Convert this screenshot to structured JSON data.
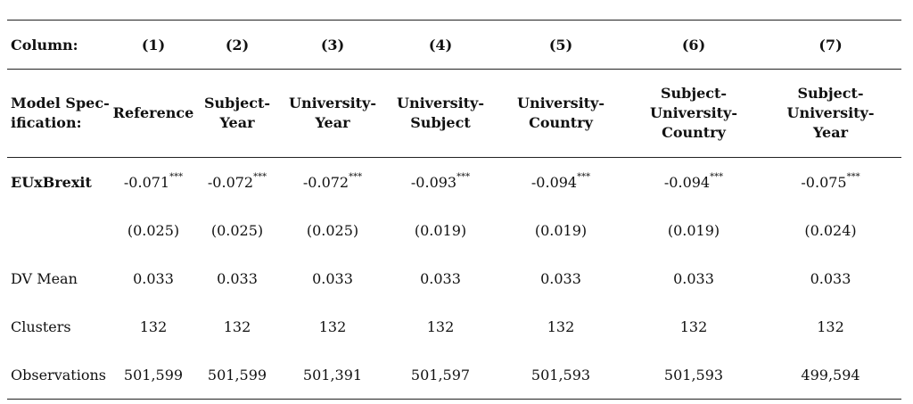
{
  "header": {
    "label": "Column:",
    "columns": [
      "(1)",
      "(2)",
      "(3)",
      "(4)",
      "(5)",
      "(6)",
      "(7)"
    ]
  },
  "spec": {
    "label_line1": "Model Spec-",
    "label_line2": "ification:",
    "columns": [
      [
        "Reference"
      ],
      [
        "Subject-",
        "Year"
      ],
      [
        "University-",
        "Year"
      ],
      [
        "University-",
        "Subject"
      ],
      [
        "University-",
        "Country"
      ],
      [
        "Subject-",
        "University-",
        "Country"
      ],
      [
        "Subject-University-",
        "Year"
      ]
    ]
  },
  "rows": [
    {
      "label": "EUxBrexit",
      "bold": true,
      "values": [
        "-0.071",
        "-0.072",
        "-0.072",
        "-0.093",
        "-0.094",
        "-0.094",
        "-0.075"
      ],
      "stars": [
        "***",
        "***",
        "***",
        "***",
        "***",
        "***",
        "***"
      ]
    },
    {
      "label": "",
      "values": [
        "(0.025)",
        "(0.025)",
        "(0.025)",
        "(0.019)",
        "(0.019)",
        "(0.019)",
        "(0.024)"
      ]
    },
    {
      "label": "DV Mean",
      "values": [
        "0.033",
        "0.033",
        "0.033",
        "0.033",
        "0.033",
        "0.033",
        "0.033"
      ]
    },
    {
      "label": "Clusters",
      "values": [
        "132",
        "132",
        "132",
        "132",
        "132",
        "132",
        "132"
      ]
    },
    {
      "label": "Observations",
      "values": [
        "501,599",
        "501,599",
        "501,391",
        "501,597",
        "501,593",
        "501,593",
        "499,594"
      ]
    }
  ]
}
